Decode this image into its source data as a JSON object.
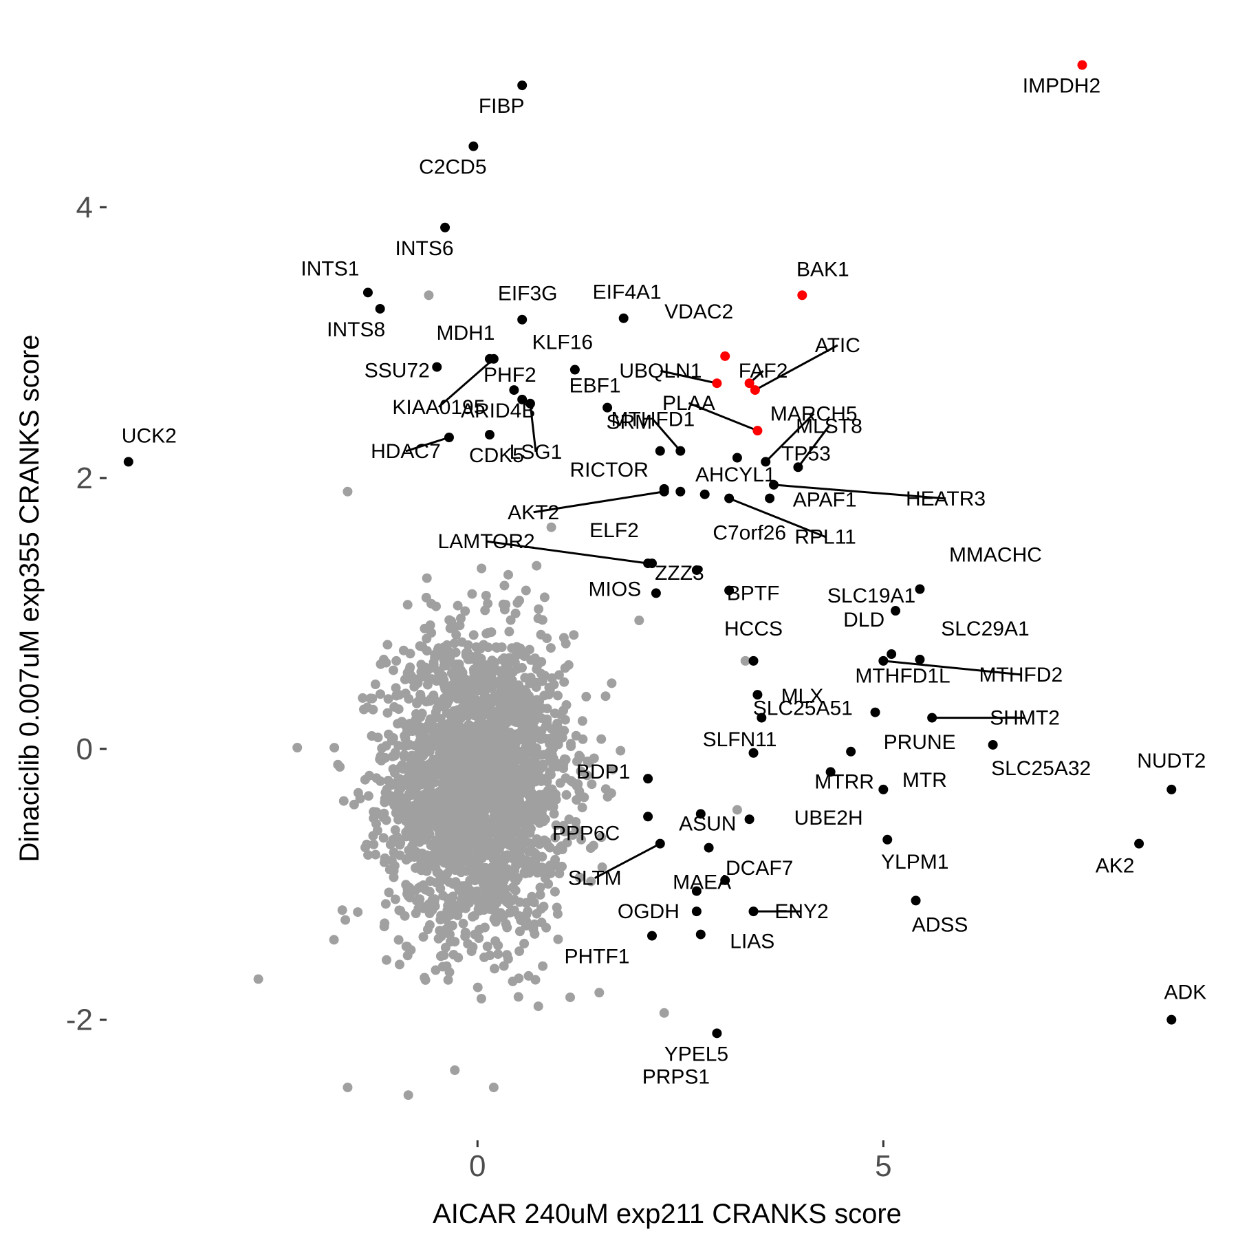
{
  "chart_data": {
    "type": "scatter",
    "title": "",
    "xlabel": "AICAR 240uM exp211 CRANKS score",
    "ylabel": "Dinaciclib 0.007uM exp355 CRANKS score",
    "xlim": [
      -4.4,
      9.2
    ],
    "ylim": [
      -2.85,
      5.2
    ],
    "xticks": [
      0,
      5
    ],
    "yticks": [
      -2,
      0,
      2,
      4
    ],
    "x_tick_labels": [
      "0",
      "5"
    ],
    "y_tick_labels": [
      "-2",
      "0",
      "2",
      "4"
    ],
    "grid": false,
    "legend": "none",
    "colors": {
      "background_points": "#a0a0a0",
      "labeled": "#000000",
      "highlight": "#ff0000"
    },
    "background_cloud": {
      "description_count": 2500,
      "x_center": 0.0,
      "x_sd": 0.55,
      "y_center": -0.25,
      "y_sd": 0.55
    },
    "background_extra": [
      {
        "x": -0.6,
        "y": 3.35
      },
      {
        "x": -2.7,
        "y": -1.7
      },
      {
        "x": -1.6,
        "y": -2.5
      },
      {
        "x": 0.2,
        "y": -2.5
      },
      {
        "x": 2.3,
        "y": -1.95
      },
      {
        "x": 3.2,
        "y": -0.45
      },
      {
        "x": 3.3,
        "y": 0.65
      },
      {
        "x": 1.5,
        "y": -1.8
      },
      {
        "x": -1.6,
        "y": 1.9
      }
    ],
    "points": [
      {
        "gene": "IMPDH2",
        "x": 7.45,
        "y": 5.05,
        "color": "#ff0000"
      },
      {
        "gene": "FIBP",
        "x": 0.55,
        "y": 4.9,
        "color": "#000000"
      },
      {
        "gene": "C2CD5",
        "x": -0.05,
        "y": 4.45,
        "color": "#000000"
      },
      {
        "gene": "INTS6",
        "x": -0.4,
        "y": 3.85,
        "color": "#000000"
      },
      {
        "gene": "INTS1",
        "x": -1.35,
        "y": 3.37,
        "color": "#000000"
      },
      {
        "gene": "INTS8",
        "x": -1.2,
        "y": 3.25,
        "color": "#000000"
      },
      {
        "gene": "EIF3G",
        "x": 0.55,
        "y": 3.17,
        "color": "#000000"
      },
      {
        "gene": "EIF4A1",
        "x": 1.8,
        "y": 3.18,
        "color": "#000000"
      },
      {
        "gene": "BAK1",
        "x": 4.0,
        "y": 3.35,
        "color": "#ff0000"
      },
      {
        "gene": "VDAC2",
        "x": 3.05,
        "y": 2.9,
        "color": "#ff0000"
      },
      {
        "gene": "UBQLN1",
        "x": 2.95,
        "y": 2.7,
        "color": "#ff0000"
      },
      {
        "gene": "FAF2",
        "x": 3.35,
        "y": 2.7,
        "color": "#ff0000"
      },
      {
        "gene": "ATIC",
        "x": 3.42,
        "y": 2.65,
        "color": "#ff0000"
      },
      {
        "gene": "PLAA",
        "x": 3.45,
        "y": 2.35,
        "color": "#ff0000"
      },
      {
        "gene": "MDH1",
        "x": 0.15,
        "y": 2.88,
        "color": "#000000"
      },
      {
        "gene": "KIAA0195",
        "x": 0.2,
        "y": 2.88,
        "color": "#000000"
      },
      {
        "gene": "SSU72",
        "x": -0.5,
        "y": 2.82,
        "color": "#000000"
      },
      {
        "gene": "KLF16",
        "x": 1.2,
        "y": 2.8,
        "color": "#000000"
      },
      {
        "gene": "PHF2",
        "x": 0.45,
        "y": 2.65,
        "color": "#000000"
      },
      {
        "gene": "ARID4B",
        "x": 0.55,
        "y": 2.58,
        "color": "#000000"
      },
      {
        "gene": "LSG1",
        "x": 0.65,
        "y": 2.55,
        "color": "#000000"
      },
      {
        "gene": "EBF1",
        "x": 1.6,
        "y": 2.52,
        "color": "#000000"
      },
      {
        "gene": "CDK5",
        "x": 0.15,
        "y": 2.32,
        "color": "#000000"
      },
      {
        "gene": "HDAC7",
        "x": -0.35,
        "y": 2.3,
        "color": "#000000"
      },
      {
        "gene": "UCK2",
        "x": -4.3,
        "y": 2.12,
        "color": "#000000"
      },
      {
        "gene": "SRM",
        "x": 2.25,
        "y": 2.2,
        "color": "#000000"
      },
      {
        "gene": "MTHFD1",
        "x": 2.5,
        "y": 2.2,
        "color": "#000000"
      },
      {
        "gene": "MARCH5",
        "x": 3.55,
        "y": 2.12,
        "color": "#000000"
      },
      {
        "gene": "MLST8",
        "x": 3.95,
        "y": 2.08,
        "color": "#000000"
      },
      {
        "gene": "TP53",
        "x": 3.2,
        "y": 2.15,
        "color": "#000000"
      },
      {
        "gene": "RICTOR",
        "x": 2.3,
        "y": 1.92,
        "color": "#000000"
      },
      {
        "gene": "AHCYL1",
        "x": 2.5,
        "y": 1.9,
        "color": "#000000"
      },
      {
        "gene": "AKT2",
        "x": 2.3,
        "y": 1.9,
        "color": "#000000"
      },
      {
        "gene": "HEATR3",
        "x": 3.65,
        "y": 1.95,
        "color": "#000000"
      },
      {
        "gene": "APAF1",
        "x": 3.6,
        "y": 1.85,
        "color": "#000000"
      },
      {
        "gene": "RPL11",
        "x": 3.1,
        "y": 1.85,
        "color": "#000000"
      },
      {
        "gene": "C7orf26",
        "x": 2.8,
        "y": 1.88,
        "color": "#000000"
      },
      {
        "gene": "ELF2",
        "x": 2.15,
        "y": 1.37,
        "color": "#000000"
      },
      {
        "gene": "LAMTOR2",
        "x": 2.1,
        "y": 1.37,
        "color": "#000000"
      },
      {
        "gene": "MMACHC",
        "x": 5.45,
        "y": 1.18,
        "color": "#000000"
      },
      {
        "gene": "SLC19A1",
        "x": 5.15,
        "y": 1.02,
        "color": "#000000"
      },
      {
        "gene": "MIOS",
        "x": 2.2,
        "y": 1.15,
        "color": "#000000"
      },
      {
        "gene": "ZZZ3",
        "x": 2.7,
        "y": 1.32,
        "color": "#000000"
      },
      {
        "gene": "BPTF",
        "x": 3.1,
        "y": 1.17,
        "color": "#000000"
      },
      {
        "gene": "HCCS",
        "x": 3.4,
        "y": 0.65,
        "color": "#000000"
      },
      {
        "gene": "DLD",
        "x": 5.1,
        "y": 0.7,
        "color": "#000000"
      },
      {
        "gene": "SLC29A1",
        "x": 5.45,
        "y": 0.66,
        "color": "#000000"
      },
      {
        "gene": "MTHFD2",
        "x": 5.0,
        "y": 0.65,
        "color": "#000000"
      },
      {
        "gene": "MTHFD1L",
        "x": 4.9,
        "y": 0.27,
        "color": "#000000"
      },
      {
        "gene": "MLX",
        "x": 3.45,
        "y": 0.4,
        "color": "#000000"
      },
      {
        "gene": "SHMT2",
        "x": 5.6,
        "y": 0.23,
        "color": "#000000"
      },
      {
        "gene": "SLC25A51",
        "x": 3.5,
        "y": 0.23,
        "color": "#000000"
      },
      {
        "gene": "PRUNE",
        "x": 4.6,
        "y": -0.02,
        "color": "#000000"
      },
      {
        "gene": "SLC25A32",
        "x": 6.35,
        "y": 0.03,
        "color": "#000000"
      },
      {
        "gene": "NUDT2",
        "x": 8.55,
        "y": -0.3,
        "color": "#000000"
      },
      {
        "gene": "MTRR",
        "x": 4.35,
        "y": -0.17,
        "color": "#000000"
      },
      {
        "gene": "BDP1",
        "x": 2.1,
        "y": -0.22,
        "color": "#000000"
      },
      {
        "gene": "SLFN11",
        "x": 3.4,
        "y": -0.03,
        "color": "#000000"
      },
      {
        "gene": "PPP6C",
        "x": 2.1,
        "y": -0.5,
        "color": "#000000"
      },
      {
        "gene": "ASUN",
        "x": 2.75,
        "y": -0.48,
        "color": "#000000"
      },
      {
        "gene": "UBE2H",
        "x": 3.35,
        "y": -0.52,
        "color": "#000000"
      },
      {
        "gene": "MTR",
        "x": 5.0,
        "y": -0.3,
        "color": "#000000"
      },
      {
        "gene": "SLTM",
        "x": 2.25,
        "y": -0.7,
        "color": "#000000"
      },
      {
        "gene": "MAEA",
        "x": 2.85,
        "y": -0.73,
        "color": "#000000"
      },
      {
        "gene": "YLPM1",
        "x": 5.05,
        "y": -0.67,
        "color": "#000000"
      },
      {
        "gene": "AK2",
        "x": 8.15,
        "y": -0.7,
        "color": "#000000"
      },
      {
        "gene": "DCAF7",
        "x": 3.05,
        "y": -0.97,
        "color": "#000000"
      },
      {
        "gene": "ENY2",
        "x": 3.4,
        "y": -1.2,
        "color": "#000000"
      },
      {
        "gene": "ADSS",
        "x": 5.4,
        "y": -1.12,
        "color": "#000000"
      },
      {
        "gene": "OGDH",
        "x": 2.7,
        "y": -1.2,
        "color": "#000000"
      },
      {
        "gene": "PHTF1",
        "x": 2.15,
        "y": -1.38,
        "color": "#000000"
      },
      {
        "gene": "LIAS",
        "x": 2.75,
        "y": -1.37,
        "color": "#000000"
      },
      {
        "gene": "PRPS1",
        "x": 2.7,
        "y": -1.05,
        "color": "#000000"
      },
      {
        "gene": "ADK",
        "x": 8.55,
        "y": -2.0,
        "color": "#000000"
      },
      {
        "gene": "YPEL5",
        "x": 2.95,
        "y": -2.1,
        "color": "#000000"
      }
    ]
  }
}
